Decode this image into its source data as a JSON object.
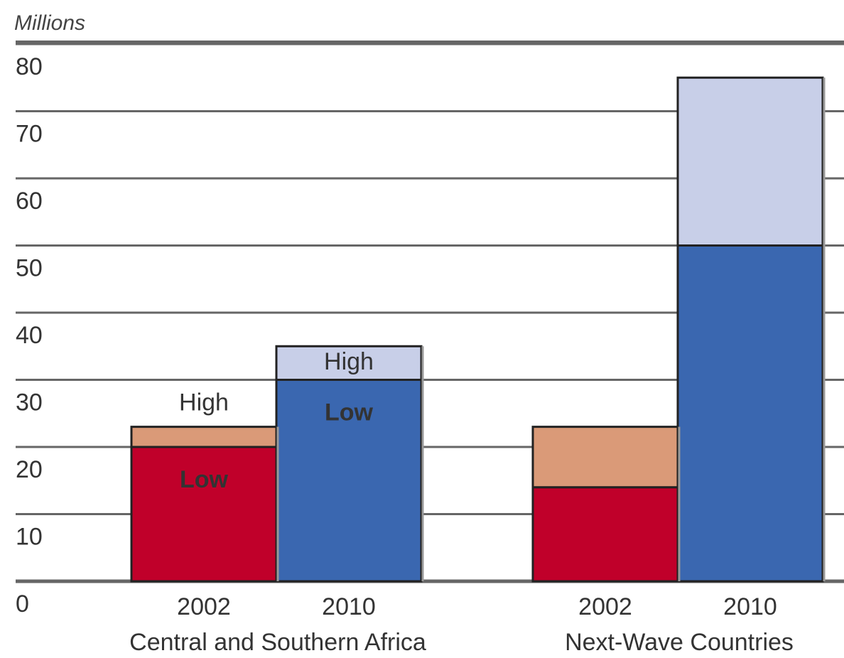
{
  "chart_data": {
    "type": "bar",
    "stacked": true,
    "y_label": "Millions",
    "groups": [
      "Central and Southern Africa",
      "Next-Wave Countries"
    ],
    "categories": [
      "2002",
      "2010",
      "2002",
      "2010"
    ],
    "series": [
      {
        "name": "Low",
        "values": [
          20,
          30,
          14,
          50
        ],
        "colors": [
          "#c0002a",
          "#3a67b0",
          "#c0002a",
          "#3a67b0"
        ]
      },
      {
        "name": "High",
        "values": [
          3,
          5,
          9,
          25
        ],
        "colors": [
          "#da9a78",
          "#c8cfe8",
          "#da9a78",
          "#c8cfe8"
        ]
      }
    ],
    "annotations": [
      {
        "series": 1,
        "category": 0
      },
      {
        "series": 0,
        "category": 0
      },
      {
        "series": 1,
        "category": 1
      },
      {
        "series": 0,
        "category": 1
      }
    ],
    "ylim": [
      0,
      80
    ],
    "yticks": [
      0,
      10,
      20,
      30,
      40,
      50,
      60,
      70,
      80
    ],
    "grid": true
  }
}
